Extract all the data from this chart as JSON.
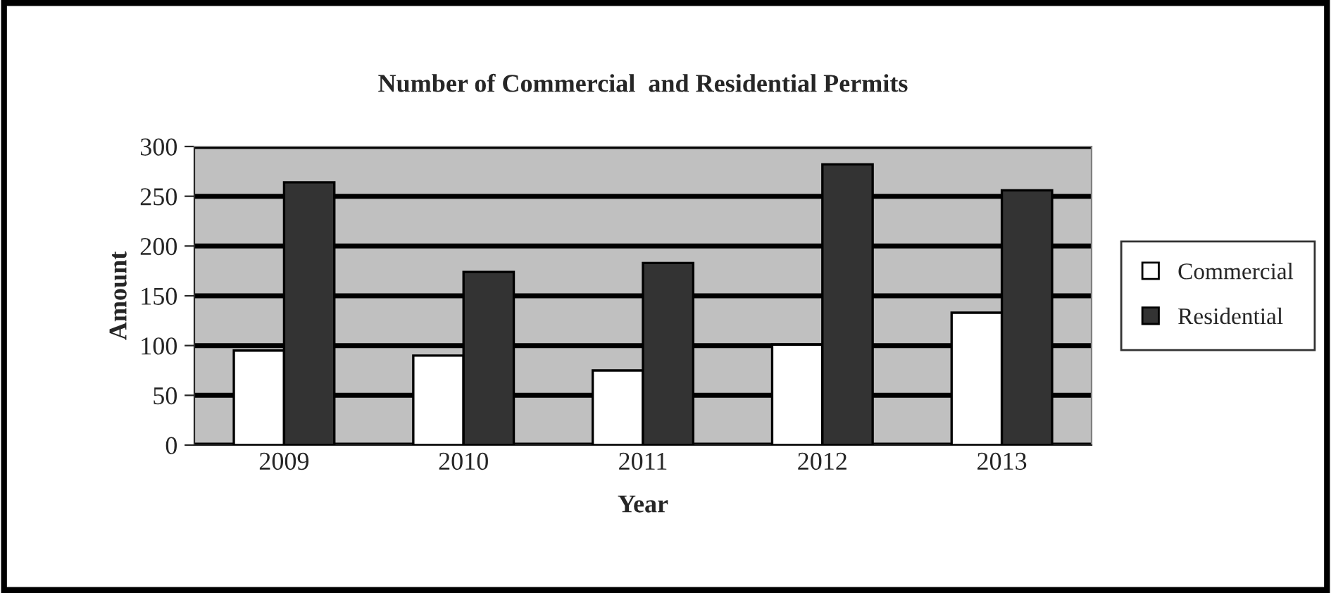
{
  "chart_data": {
    "type": "bar",
    "title": "Number of Commercial  and Residential Permits",
    "xlabel": "Year",
    "ylabel": "Amount",
    "categories": [
      "2009",
      "2010",
      "2011",
      "2012",
      "2013"
    ],
    "series": [
      {
        "name": "Commercial",
        "color": "#ffffff",
        "values": [
          95,
          90,
          75,
          101,
          133
        ]
      },
      {
        "name": "Residential",
        "color": "#333333",
        "values": [
          264,
          174,
          183,
          282,
          256
        ]
      }
    ],
    "ylim": [
      0,
      300
    ],
    "yticks": [
      0,
      50,
      100,
      150,
      200,
      250,
      300
    ],
    "grid": "y",
    "legend": "right"
  }
}
